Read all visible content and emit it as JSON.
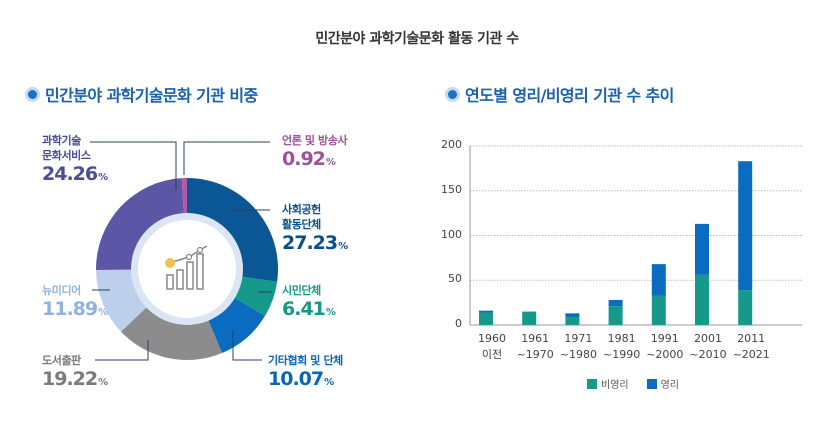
{
  "title": "민간분야 과학기술문화 활동 기관 수",
  "sections": {
    "left_title": "민간분야 과학기술문화 기관 비중",
    "right_title": "연도별 영리/비영리 기관 수 추이"
  },
  "chart_data": [
    {
      "type": "pie",
      "donut": true,
      "center_icon": "growth-chart-icon",
      "slices": [
        {
          "label": "사회공헌 활동단체",
          "lines": [
            "사회공헌",
            "활동단체"
          ],
          "value": 27.23,
          "color": "#0b5796"
        },
        {
          "label": "시민단체",
          "lines": [
            "시민단체"
          ],
          "value": 6.41,
          "color": "#16998a"
        },
        {
          "label": "기타협회 및 단체",
          "lines": [
            "기타협회 및 단체"
          ],
          "value": 10.07,
          "color": "#0a6cc0"
        },
        {
          "label": "도서출판",
          "lines": [
            "도서출판"
          ],
          "value": 19.22,
          "color": "#8c8c8c"
        },
        {
          "label": "뉴미디어",
          "lines": [
            "뉴미디어"
          ],
          "value": 11.89,
          "color": "#bcd0ec"
        },
        {
          "label": "과학기술 문화서비스",
          "lines": [
            "과학기술",
            "문화서비스"
          ],
          "value": 24.26,
          "color": "#5b56a6"
        },
        {
          "label": "언론 및 방송사",
          "lines": [
            "언론 및 방송사"
          ],
          "value": 0.92,
          "color": "#b45aa8"
        }
      ],
      "unit": "%"
    },
    {
      "type": "bar",
      "stacked": true,
      "categories": [
        [
          "1960",
          "이전"
        ],
        [
          "1961",
          "~1970"
        ],
        [
          "1971",
          "~1980"
        ],
        [
          "1981",
          "~1990"
        ],
        [
          "1991",
          "~2000"
        ],
        [
          "2001",
          "~2010"
        ],
        [
          "2011",
          "~2021"
        ]
      ],
      "series": [
        {
          "name": "비영리",
          "color": "#16998a",
          "values": [
            14,
            15,
            9,
            21,
            33,
            56,
            39
          ]
        },
        {
          "name": "영리",
          "color": "#0a6cc0",
          "values": [
            2,
            0,
            4,
            7,
            35,
            57,
            144
          ]
        }
      ],
      "ylim": [
        0,
        200
      ],
      "yticks": [
        0,
        50,
        100,
        150,
        200
      ],
      "grid": true,
      "legend": "bottom"
    }
  ]
}
